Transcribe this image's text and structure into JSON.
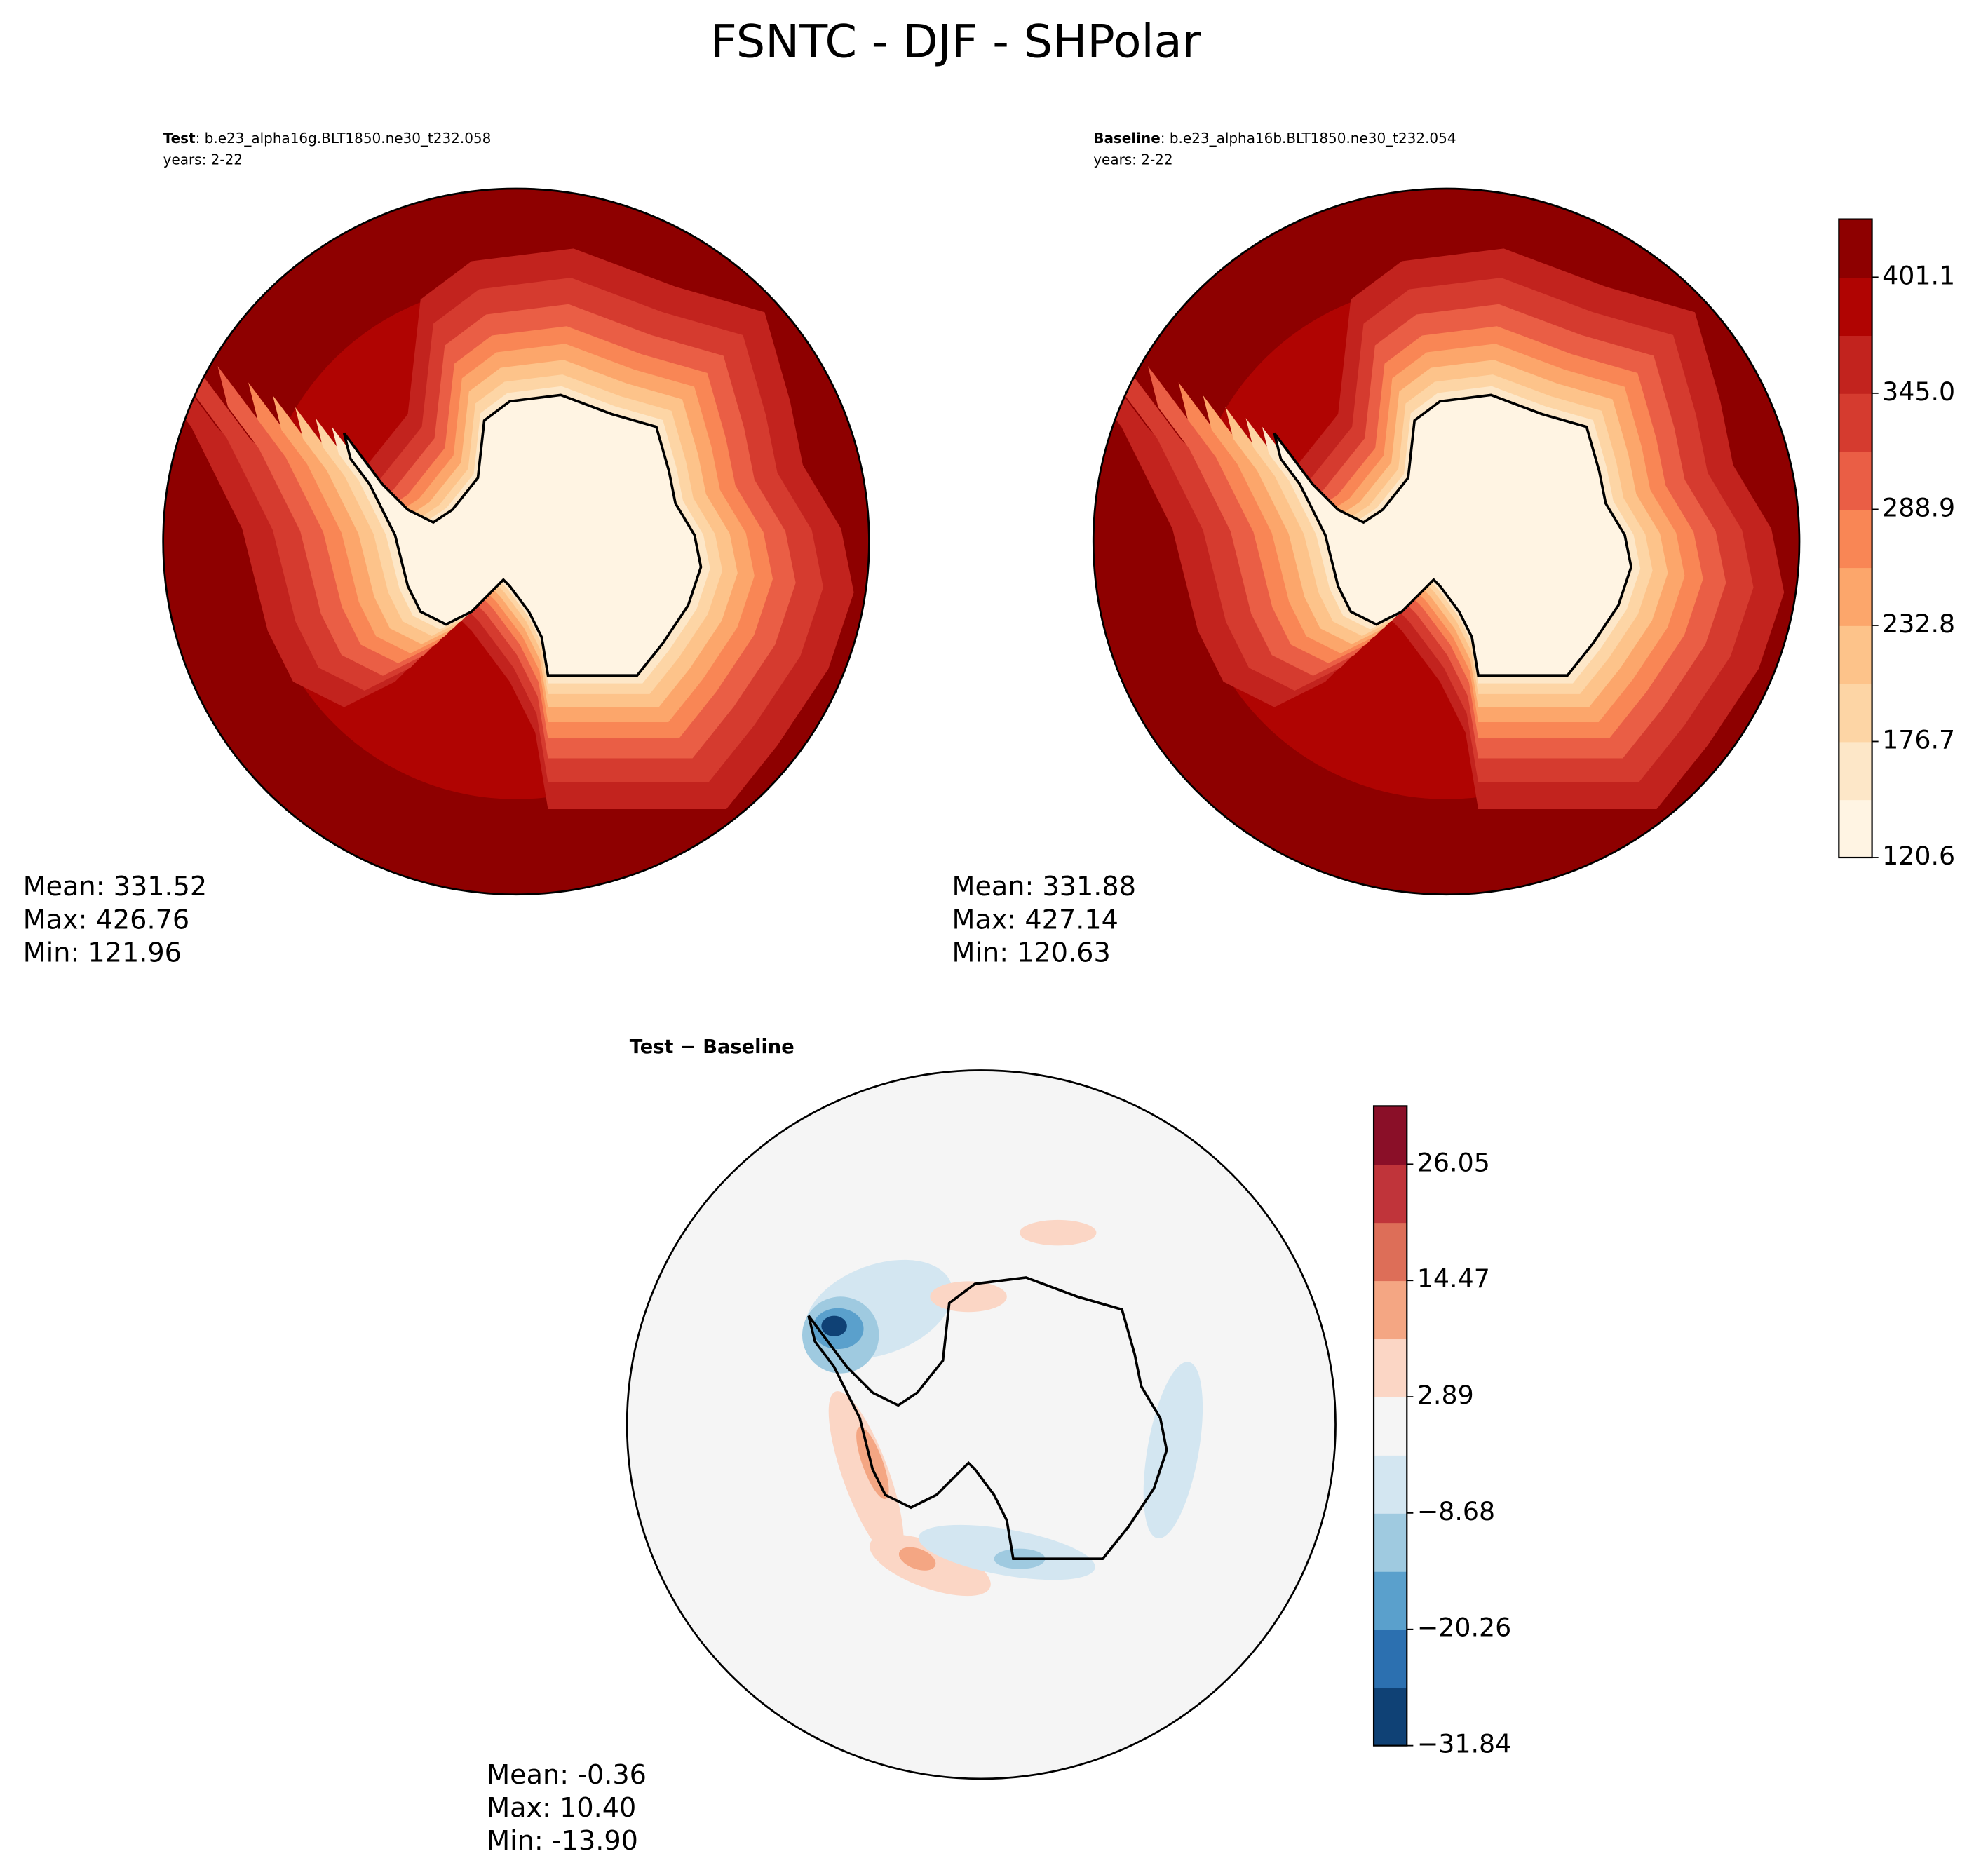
{
  "suptitle": "FSNTC - DJF - SHPolar",
  "chart_data": [
    {
      "type": "polar-contour",
      "label_bold": "Test",
      "label": ": b.e23_alpha16g.BLT1850.ne30_t232.058",
      "years": "years: 2-22",
      "stats": [
        "Mean: 331.52",
        "Max: 426.76",
        "Min: 121.96"
      ]
    },
    {
      "type": "polar-contour",
      "label_bold": "Baseline",
      "label": ": b.e23_alpha16b.BLT1850.ne30_t232.054",
      "years": "years: 2-22",
      "stats": [
        "Mean: 331.88",
        "Max: 427.14",
        "Min: 120.63"
      ],
      "colorbar": {
        "ylim": [
          120.6,
          429.15
        ],
        "yticks": [
          120.6,
          176.7,
          232.8,
          288.9,
          {
            "value": 345.0,
            "label": "345.0"
          },
          401.1
        ],
        "colors": [
          "#fff4e3",
          "#fde7c8",
          "#fdd5a5",
          "#fdc38a",
          "#fca66b",
          "#f98655",
          "#ea5e45",
          "#d53b2f",
          "#c2231e",
          "#b00402",
          "#8e0000"
        ]
      }
    },
    {
      "type": "polar-difference",
      "label_bold": "Test − Baseline",
      "stats": [
        "Mean: -0.36",
        "Max: 10.40",
        "Min: -13.90"
      ],
      "colorbar": {
        "ylim": [
          -31.84,
          31.84
        ],
        "yticks": [
          {
            "value": -31.84,
            "label": "−31.84"
          },
          {
            "value": -20.26,
            "label": "−20.26"
          },
          {
            "value": -8.68,
            "label": "−8.68"
          },
          2.89,
          14.47,
          26.05
        ],
        "colors": [
          "#0f4175",
          "#2c70b0",
          "#5aa0cc",
          "#9fcae0",
          "#d3e6f1",
          "#f5f5f5",
          "#fbd6c5",
          "#f4a683",
          "#dd6e58",
          "#c0343a",
          "#8a0f28"
        ]
      }
    }
  ]
}
